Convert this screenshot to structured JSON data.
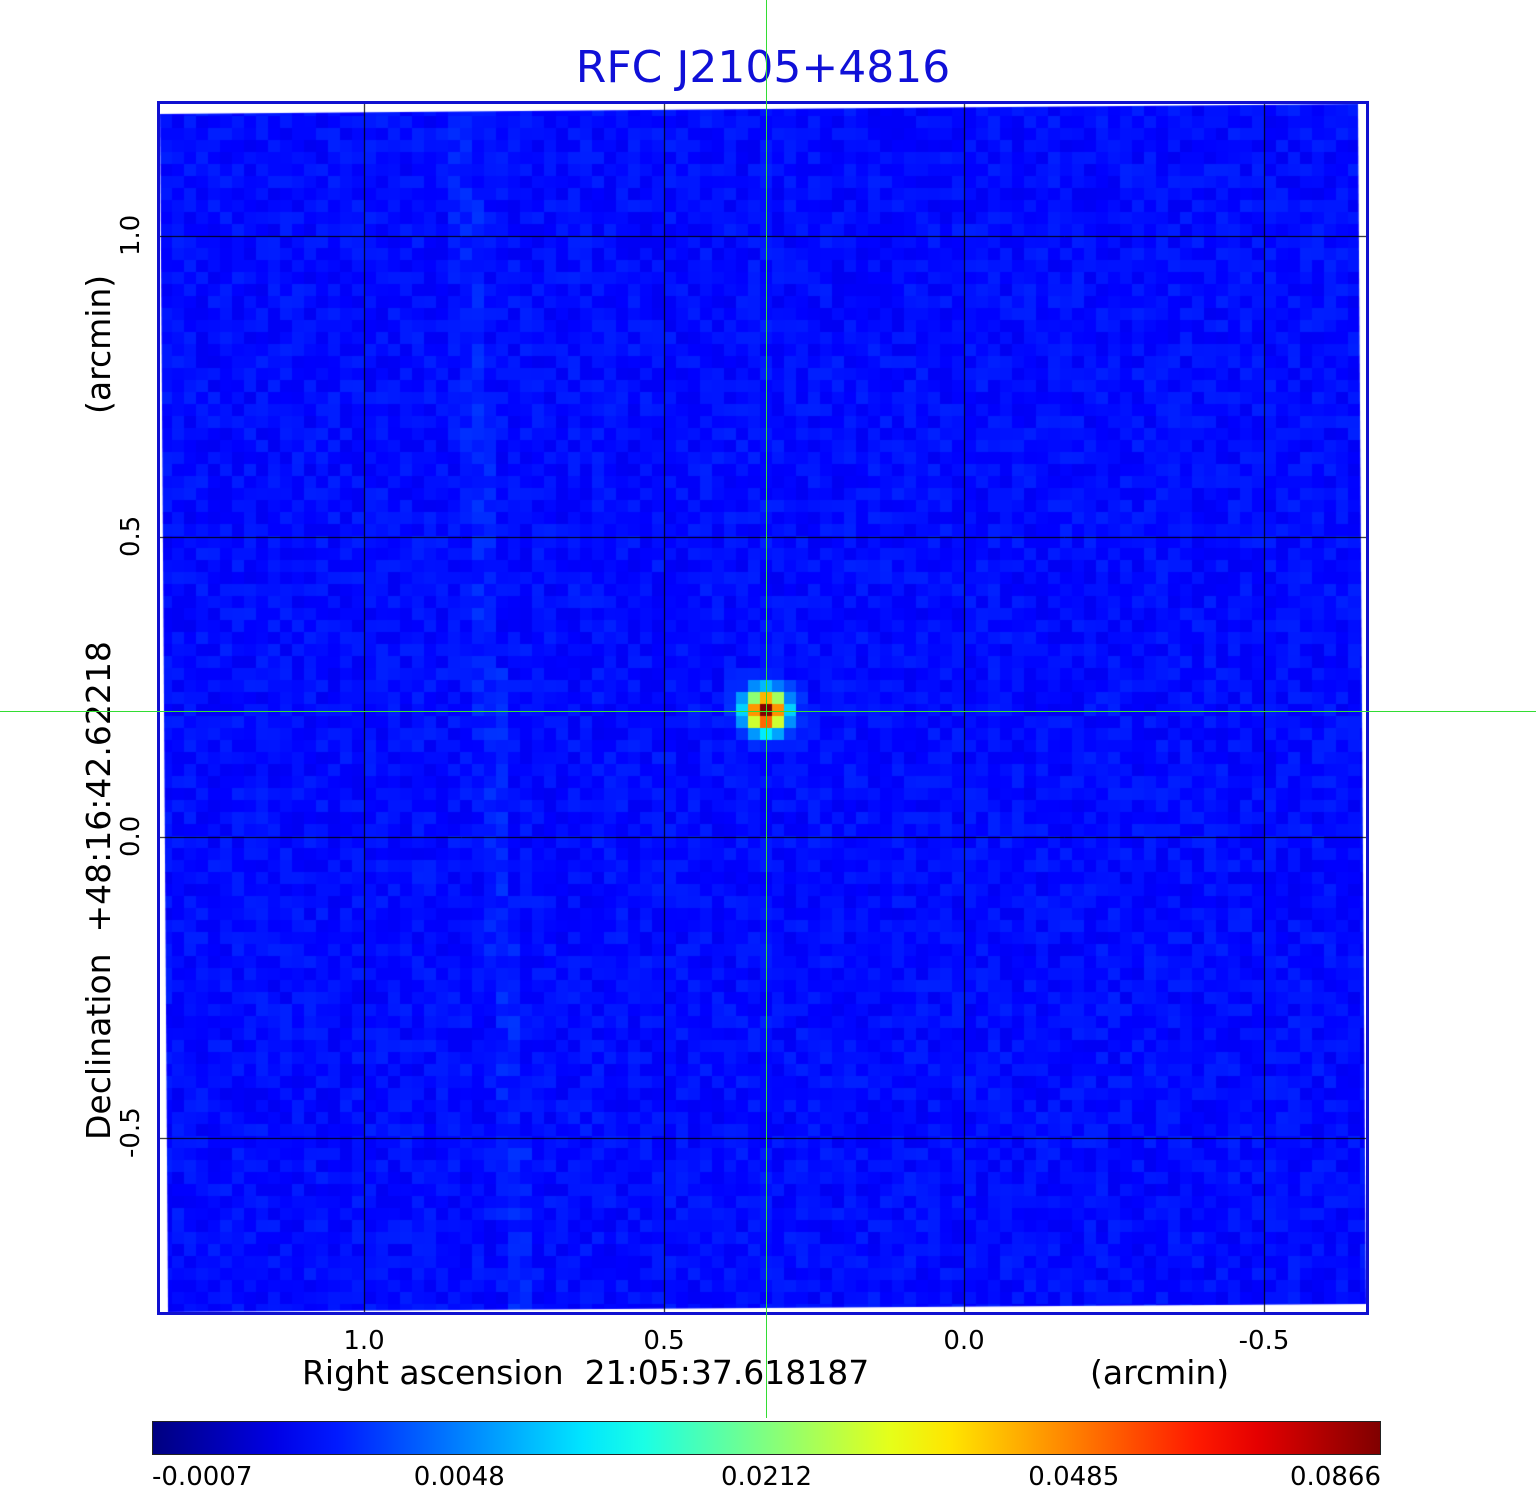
{
  "title": "RFC J2105+4816",
  "x_axis": {
    "label": "Right ascension  21:05:37.618187",
    "unit": "(arcmin)",
    "ticks": [
      "1.0",
      "0.5",
      "0.0",
      "-0.5"
    ],
    "tick_values": [
      1.0,
      0.5,
      0.0,
      -0.5
    ],
    "range": [
      1.34,
      -0.67
    ]
  },
  "y_axis": {
    "label": "Declination  +48:16:42.62218",
    "unit": "(arcmin)",
    "ticks": [
      "1.0",
      "0.5",
      "0.0",
      "-0.5"
    ],
    "tick_values": [
      1.0,
      0.5,
      0.0,
      -0.5
    ],
    "range": [
      -0.79,
      1.22
    ]
  },
  "grid": true,
  "colormap": "jet",
  "colorbar": {
    "labels": [
      "-0.0007",
      "0.0048",
      "0.0212",
      "0.0485",
      "0.0866"
    ],
    "min": -0.0007,
    "max": 0.0866
  },
  "source": {
    "x_arcmin": 0.33,
    "y_arcmin": 0.21,
    "peak": 0.0866
  },
  "cursor": {
    "x_arcmin": 0.33,
    "y_arcmin": 0.21
  }
}
